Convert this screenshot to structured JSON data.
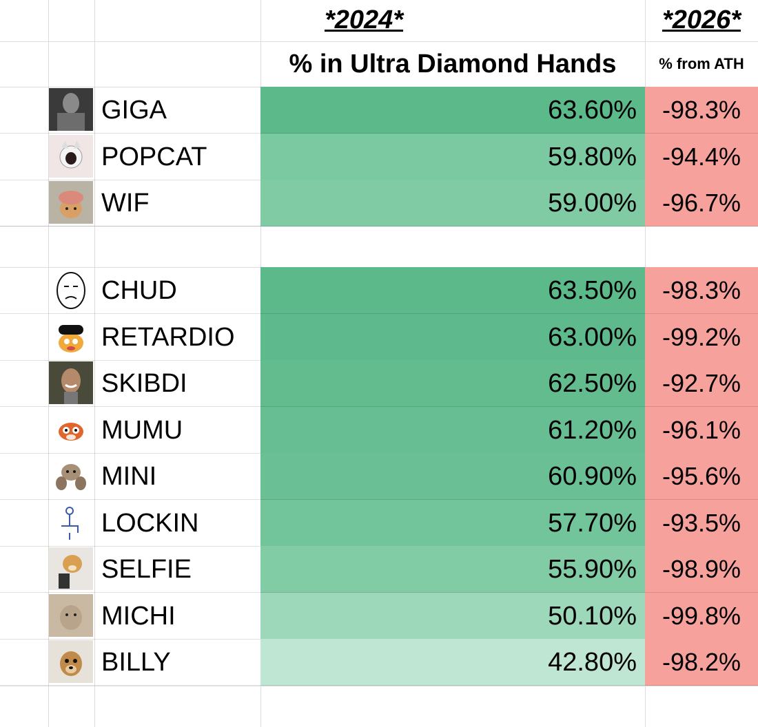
{
  "headers": {
    "year_2024": "*2024*",
    "year_2026": "*2026*",
    "col_diamond": "% in Ultra Diamond Hands",
    "col_ath": "% from ATH"
  },
  "group1": [
    {
      "name": "GIGA",
      "diamond": "63.60%",
      "ath": "-98.3%",
      "green": "#5bb98a",
      "icon": "giga-chad-avatar-icon"
    },
    {
      "name": "POPCAT",
      "diamond": "59.80%",
      "ath": "-94.4%",
      "green": "#7bc9a1",
      "icon": "popcat-avatar-icon"
    },
    {
      "name": "WIF",
      "diamond": "59.00%",
      "ath": "-96.7%",
      "green": "#80cba4",
      "icon": "dog-with-hat-avatar-icon"
    }
  ],
  "group2": [
    {
      "name": "CHUD",
      "diamond": "63.50%",
      "ath": "-98.3%",
      "green": "#5bb98a",
      "icon": "chud-face-avatar-icon"
    },
    {
      "name": "RETARDIO",
      "diamond": "63.00%",
      "ath": "-99.2%",
      "green": "#5eba8c",
      "icon": "retardio-avatar-icon"
    },
    {
      "name": "SKIBDI",
      "diamond": "62.50%",
      "ath": "-92.7%",
      "green": "#62bc8e",
      "icon": "skibidi-avatar-icon"
    },
    {
      "name": "MUMU",
      "diamond": "61.20%",
      "ath": "-96.1%",
      "green": "#67be92",
      "icon": "mumu-bull-avatar-icon"
    },
    {
      "name": "MINI",
      "diamond": "60.90%",
      "ath": "-95.6%",
      "green": "#6ac094",
      "icon": "mini-creature-avatar-icon"
    },
    {
      "name": "LOCKIN",
      "diamond": "57.70%",
      "ath": "-93.5%",
      "green": "#72c49b",
      "icon": "lockin-chair-avatar-icon"
    },
    {
      "name": "SELFIE",
      "diamond": "55.90%",
      "ath": "-98.9%",
      "green": "#81cba5",
      "icon": "selfie-dog-avatar-icon"
    },
    {
      "name": "MICHI",
      "diamond": "50.10%",
      "ath": "-99.8%",
      "green": "#9dd8bb",
      "icon": "michi-cat-avatar-icon"
    },
    {
      "name": "BILLY",
      "diamond": "42.80%",
      "ath": "-98.2%",
      "green": "#bfe6d2",
      "icon": "billy-dog-avatar-icon"
    }
  ],
  "colors": {
    "ath_red": "#f7a19d",
    "grid": "#dcdcdc"
  }
}
